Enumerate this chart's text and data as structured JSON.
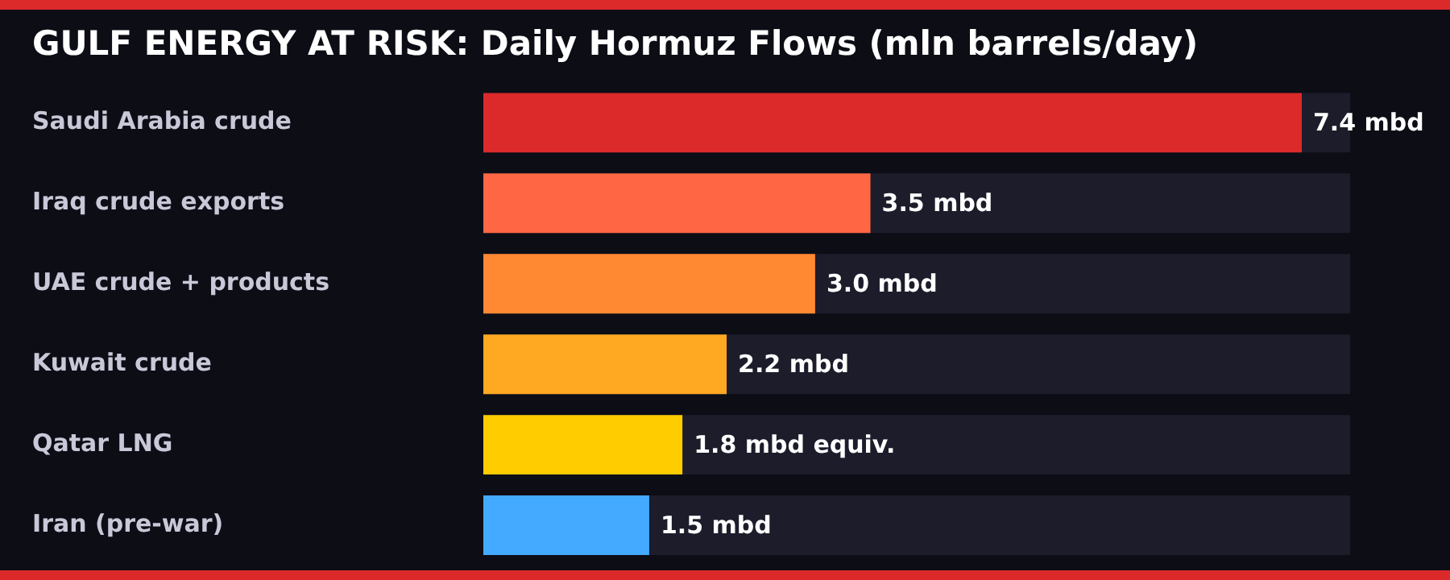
{
  "chart_data": {
    "type": "bar",
    "orientation": "horizontal",
    "title": "GULF ENERGY AT RISK: Daily Hormuz Flows (mln barrels/day)",
    "categories": [
      "Saudi Arabia crude",
      "Iraq crude exports",
      "UAE crude + products",
      "Kuwait crude",
      "Qatar LNG",
      "Iran (pre-war)"
    ],
    "values": [
      7.4,
      3.5,
      3.0,
      2.2,
      1.8,
      1.5
    ],
    "colors": [
      "#dc2a2a",
      "#ff6644",
      "#ff8833",
      "#ffa822",
      "#ffcc00",
      "#44aaff"
    ],
    "value_labels": [
      "7.4 mbd",
      "3.5 mbd",
      "3.0 mbd",
      "2.2 mbd",
      "1.8 mbd equiv.",
      "1.5 mbd"
    ],
    "legend": false
  }
}
